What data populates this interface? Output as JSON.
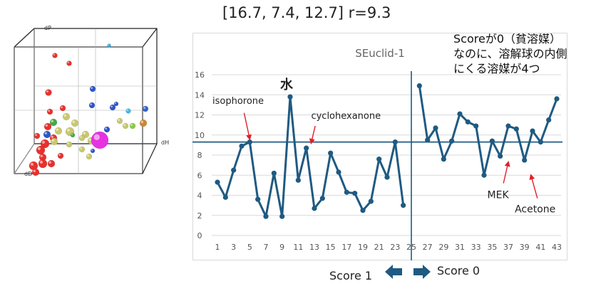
{
  "header": {
    "params": "[16.7, 7.4, 12.7] r=9.3",
    "note_lines": [
      "Scoreが0（貧溶媒）",
      "なのに、溶解球の内側",
      "にくる溶媒が4つ"
    ]
  },
  "plot3d": {
    "axis_labels": {
      "dp": "dP",
      "dh": "dH",
      "dd": "dD"
    },
    "colors": {
      "good": "#e8312d",
      "poor": "#2f55c8",
      "center": "#e533e0",
      "other": "#c8c870"
    }
  },
  "chart_data": {
    "type": "line",
    "title": "SEuclid-1",
    "ylim": [
      0,
      16
    ],
    "yticks": [
      0,
      2,
      4,
      6,
      8,
      10,
      12,
      14,
      16
    ],
    "xticks": [
      1,
      3,
      5,
      7,
      9,
      11,
      13,
      15,
      17,
      19,
      21,
      23,
      25,
      27,
      29,
      31,
      33,
      35,
      37,
      39,
      41,
      43
    ],
    "xrange": [
      1,
      43
    ],
    "threshold": 9.3,
    "divider_x": 25,
    "series": [
      {
        "x": [
          1,
          2,
          3,
          4,
          5,
          6,
          7,
          8,
          9,
          10,
          11,
          12,
          13,
          14,
          15,
          16,
          17,
          18,
          19,
          20,
          21,
          22,
          23,
          24
        ],
        "values": [
          5.3,
          3.8,
          6.5,
          8.9,
          9.3,
          3.6,
          1.9,
          6.2,
          1.9,
          13.8,
          5.5,
          8.7,
          2.7,
          3.7,
          8.2,
          6.3,
          4.3,
          4.2,
          2.5,
          3.4,
          7.6,
          5.8,
          9.3,
          3.0
        ]
      },
      {
        "x": [
          26,
          27,
          28,
          29,
          30,
          31,
          32,
          33,
          34,
          35,
          36,
          37,
          38,
          39,
          40,
          41,
          42,
          43
        ],
        "values": [
          14.9,
          9.5,
          10.7,
          7.6,
          9.4,
          12.1,
          11.3,
          10.9,
          6.0,
          9.4,
          7.9,
          10.9,
          10.6,
          7.5,
          10.4,
          9.3,
          11.5,
          13.6
        ]
      }
    ],
    "annotations": {
      "water": "水",
      "isophorone": "isophorone",
      "cyclohexanone": "cyclohexanone",
      "mek": "MEK",
      "acetone": "Acetone"
    },
    "colors": {
      "line": "#1f5a82",
      "arrow": "#e0202a",
      "grid": "#d9d9d9",
      "divider": "#1f5a82"
    }
  },
  "footer": {
    "score1_label": "Score 1",
    "score0_label": "Score 0",
    "arrow_color": "#1f5a82"
  }
}
